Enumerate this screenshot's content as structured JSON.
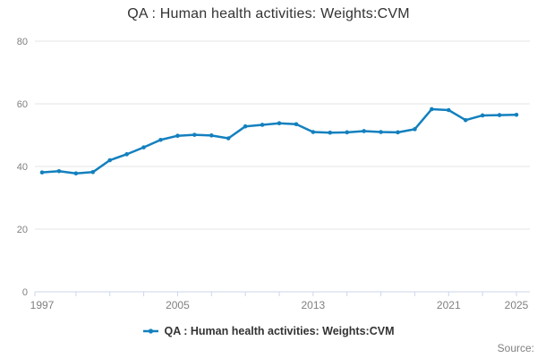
{
  "title": "QA : Human health activities: Weights:CVM",
  "legend": {
    "label": "QA : Human health activities: Weights:CVM"
  },
  "source_label": "Source:",
  "colors": {
    "series": "#1380be",
    "title_text": "#333333",
    "tick_label": "#808080",
    "gridline": "#e6e6e6",
    "axis_line": "#ccd6eb",
    "legend_text": "#333333",
    "source_text": "#808080",
    "background": "#ffffff"
  },
  "chart_data": {
    "type": "line",
    "title": "QA : Human health activities: Weights:CVM",
    "xlabel": "",
    "ylabel": "",
    "ylim": [
      0,
      80
    ],
    "y_ticks": [
      0,
      20,
      40,
      60,
      80
    ],
    "x_range": [
      1997,
      2025
    ],
    "x_labeled_ticks": [
      1997,
      2005,
      2013,
      2021,
      2025
    ],
    "x_minor_tick_step_years": 2,
    "grid": "horizontal",
    "legend_position": "bottom",
    "x": [
      1997,
      1998,
      1999,
      2000,
      2001,
      2002,
      2003,
      2004,
      2005,
      2006,
      2007,
      2008,
      2009,
      2010,
      2011,
      2012,
      2013,
      2014,
      2015,
      2016,
      2017,
      2018,
      2019,
      2020,
      2021,
      2022,
      2023,
      2024,
      2025
    ],
    "series": [
      {
        "name": "QA : Human health activities: Weights:CVM",
        "values": [
          38.1,
          38.5,
          37.8,
          38.2,
          42.0,
          43.9,
          46.1,
          48.5,
          49.8,
          50.1,
          49.9,
          49.0,
          52.8,
          53.3,
          53.8,
          53.5,
          51.0,
          50.8,
          50.9,
          51.3,
          51.0,
          50.9,
          51.9,
          58.3,
          58.0,
          54.8,
          56.3,
          56.4,
          56.5
        ]
      }
    ]
  }
}
